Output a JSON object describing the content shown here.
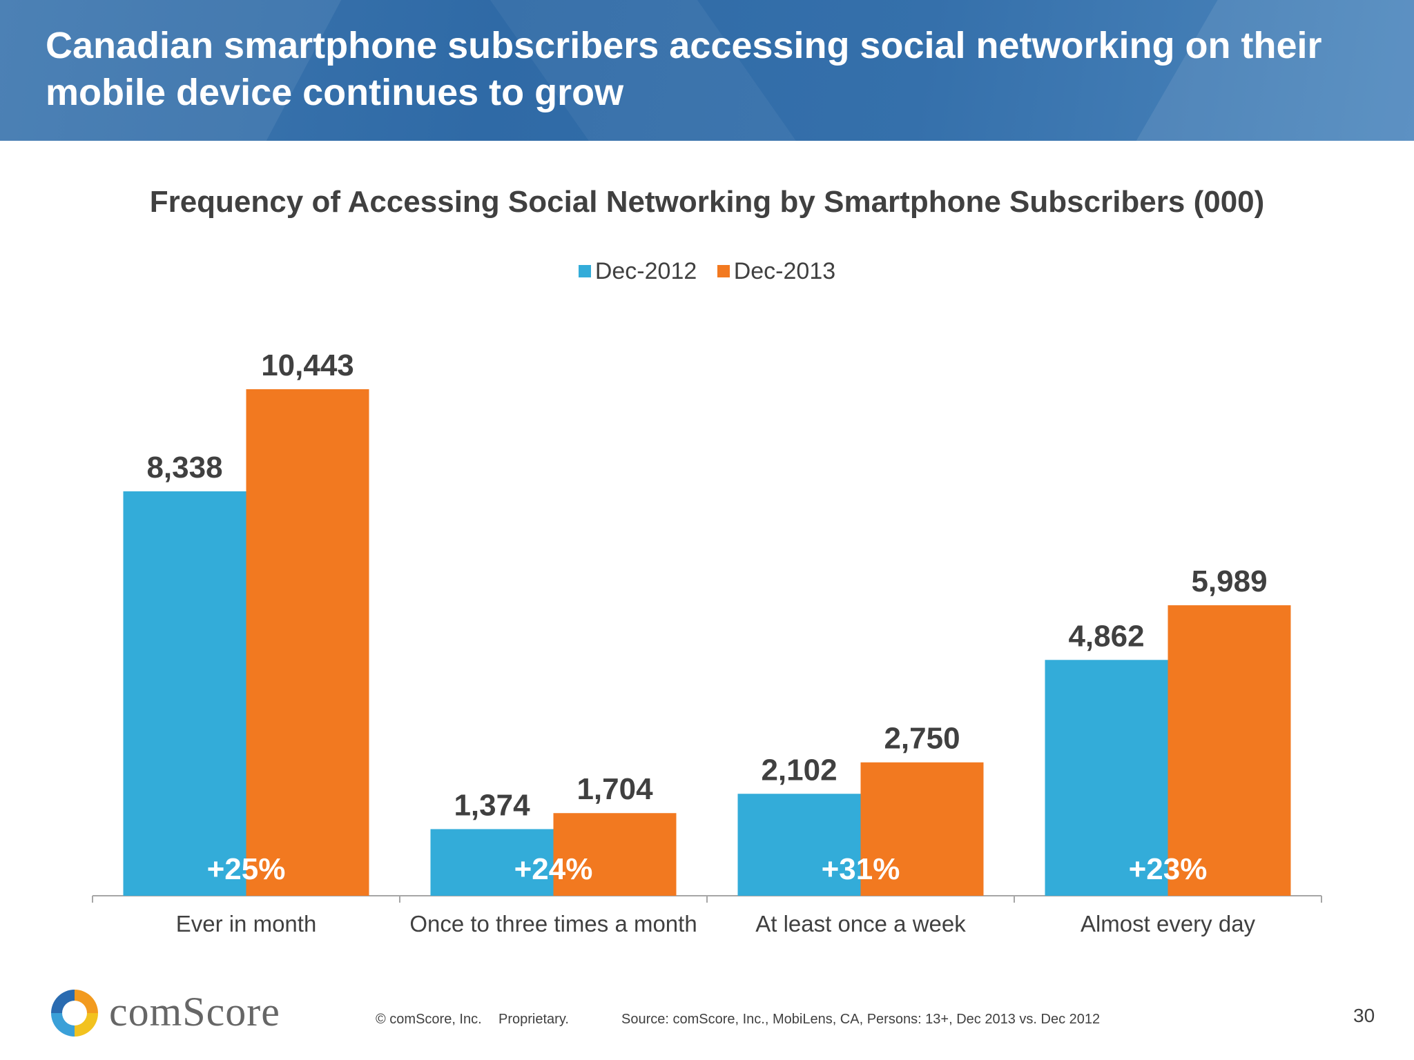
{
  "slide": {
    "title": "Canadian smartphone subscribers accessing social networking on their mobile device continues to grow",
    "page_number": "30"
  },
  "colors": {
    "series_2012": "#33acd9",
    "series_2013": "#f27920",
    "header": "#2f6aa6",
    "text": "#404040"
  },
  "chart_data": {
    "type": "bar",
    "title": "Frequency of Accessing Social Networking by Smartphone Subscribers (000)",
    "categories": [
      "Ever in month",
      "Once to three times a month",
      "At least once a week",
      "Almost every day"
    ],
    "series": [
      {
        "name": "Dec-2012",
        "values": [
          8338,
          1374,
          2102,
          4862
        ],
        "labels": [
          "8,338",
          "1,374",
          "2,102",
          "4,862"
        ]
      },
      {
        "name": "Dec-2013",
        "values": [
          10443,
          1704,
          2750,
          5989
        ],
        "labels": [
          "10,443",
          "1,704",
          "2,750",
          "5,989"
        ]
      }
    ],
    "growth_labels": [
      "+25%",
      "+24%",
      "+31%",
      "+23%"
    ],
    "ylim": [
      0,
      12000
    ],
    "legend_position": "top-center",
    "grid": false
  },
  "footer": {
    "logo_text": "comScore",
    "copyright": "© comScore, Inc.",
    "proprietary": "Proprietary.",
    "source": "Source: comScore, Inc., MobiLens, CA, Persons: 13+, Dec 2013 vs. Dec 2012"
  }
}
